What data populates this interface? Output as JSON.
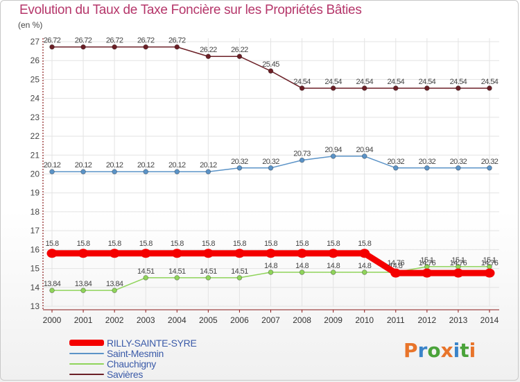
{
  "page": {
    "title": "Evolution du Taux de Taxe Foncière sur les Propriétés Bâties",
    "unit_label": "(en %)",
    "logo_text": "Proxiti"
  },
  "colors": {
    "title": "#b5366a",
    "axis": "#8a1a1a",
    "grid": "#e3e3e3",
    "legend_text": "#3a5aa8",
    "logo_letters": [
      "#e8742a",
      "#3a84c9",
      "#4aa33a",
      "#e8742a",
      "#3a84c9",
      "#4aa33a",
      "#e8742a"
    ]
  },
  "chart_data": {
    "type": "line",
    "title": "Evolution du Taux de Taxe Foncière sur les Propriétés Bâties",
    "xlabel": "",
    "ylabel": "(en %)",
    "x": [
      2000,
      2001,
      2002,
      2003,
      2004,
      2005,
      2006,
      2007,
      2008,
      2009,
      2010,
      2011,
      2012,
      2013,
      2014
    ],
    "ylim": [
      13,
      27
    ],
    "yticks": [
      13,
      14,
      15,
      16,
      17,
      18,
      19,
      20,
      21,
      22,
      23,
      24,
      25,
      26,
      27
    ],
    "grid": true,
    "legend_position": "bottom-left",
    "series": [
      {
        "name": "Savières",
        "color": "#6b1f26",
        "emphasis": false,
        "values": [
          26.72,
          26.72,
          26.72,
          26.72,
          26.72,
          26.22,
          26.22,
          25.45,
          24.54,
          24.54,
          24.54,
          24.54,
          24.54,
          24.54,
          24.54
        ],
        "labels": [
          "26.72",
          "26.72",
          "26.72",
          "26.72",
          "26.72",
          "26.22",
          "26.22",
          "25.45",
          "24.54",
          "24.54",
          "24.54",
          "24.54",
          "24.54",
          "24.54",
          "24.54"
        ]
      },
      {
        "name": "Saint-Mesmin",
        "color": "#5b93c7",
        "emphasis": false,
        "values": [
          20.12,
          20.12,
          20.12,
          20.12,
          20.12,
          20.12,
          20.32,
          20.32,
          20.73,
          20.94,
          20.94,
          20.32,
          20.32,
          20.32,
          20.32
        ],
        "labels": [
          "20.12",
          "20.12",
          "20.12",
          "20.12",
          "20.12",
          "20.12",
          "20.32",
          "20.32",
          "20.73",
          "20.94",
          "20.94",
          "20.32",
          "20.32",
          "20.32",
          "20.32"
        ]
      },
      {
        "name": "Chauchigny",
        "color": "#8fd45a",
        "emphasis": false,
        "values": [
          13.84,
          13.84,
          13.84,
          14.51,
          14.51,
          14.51,
          14.51,
          14.8,
          14.8,
          14.8,
          14.8,
          14.8,
          15.1,
          15.1,
          15.1
        ],
        "labels": [
          "13.84",
          "13.84",
          "13.84",
          "14.51",
          "14.51",
          "14.51",
          "14.51",
          "14.8",
          "14.8",
          "14.8",
          "14.8",
          "14.8",
          "15.1",
          "15.1",
          "15.1"
        ]
      },
      {
        "name": "RILLY-SAINTE-SYRE",
        "color": "#f40000",
        "emphasis": true,
        "values": [
          15.8,
          15.8,
          15.8,
          15.8,
          15.8,
          15.8,
          15.8,
          15.8,
          15.8,
          15.8,
          15.8,
          14.76,
          14.76,
          14.76,
          14.76
        ],
        "labels": [
          "15.8",
          "15.8",
          "15.8",
          "15.8",
          "15.8",
          "15.8",
          "15.8",
          "15.8",
          "15.8",
          "15.8",
          "15.8",
          "14.76",
          "14.76",
          "14.76",
          "14.76"
        ]
      }
    ],
    "legend": [
      "RILLY-SAINTE-SYRE",
      "Saint-Mesmin",
      "Chauchigny",
      "Savières"
    ]
  }
}
